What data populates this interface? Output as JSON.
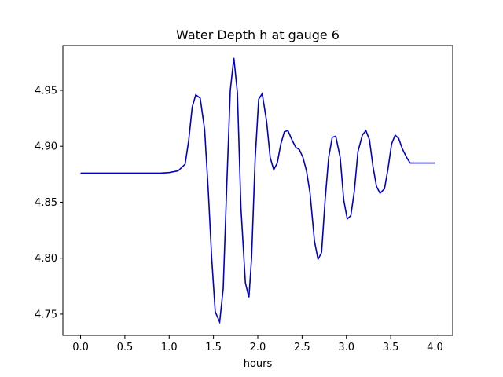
{
  "chart_data": {
    "type": "line",
    "title": "Water Depth h at gauge 6",
    "xlabel": "hours",
    "ylabel": "",
    "xlim": [
      -0.2,
      4.2
    ],
    "ylim": [
      4.731,
      4.99
    ],
    "xticks": [
      0.0,
      0.5,
      1.0,
      1.5,
      2.0,
      2.5,
      3.0,
      3.5,
      4.0
    ],
    "xtick_labels": [
      "0.0",
      "0.5",
      "1.0",
      "1.5",
      "2.0",
      "2.5",
      "3.0",
      "3.5",
      "4.0"
    ],
    "yticks": [
      4.75,
      4.8,
      4.85,
      4.9,
      4.95
    ],
    "ytick_labels": [
      "4.75",
      "4.80",
      "4.85",
      "4.90",
      "4.95"
    ],
    "grid": false,
    "line_color": "#0000cc",
    "series": [
      {
        "x": [
          0.0,
          0.5,
          0.9,
          1.0,
          1.1,
          1.18,
          1.22,
          1.26,
          1.3,
          1.35,
          1.4,
          1.44,
          1.48,
          1.52,
          1.57,
          1.61,
          1.65,
          1.69,
          1.73,
          1.77,
          1.81,
          1.86,
          1.9,
          1.93,
          1.97,
          2.01,
          2.05,
          2.1,
          2.14,
          2.18,
          2.22,
          2.26,
          2.3,
          2.34,
          2.39,
          2.43,
          2.47,
          2.51,
          2.55,
          2.59,
          2.64,
          2.68,
          2.72,
          2.76,
          2.8,
          2.84,
          2.88,
          2.93,
          2.97,
          3.01,
          3.05,
          3.09,
          3.13,
          3.18,
          3.22,
          3.26,
          3.3,
          3.34,
          3.38,
          3.43,
          3.47,
          3.51,
          3.55,
          3.59,
          3.63,
          3.68,
          3.72,
          3.76,
          3.8,
          3.84,
          3.88,
          3.93,
          3.97,
          4.0
        ],
        "y": [
          4.876,
          4.876,
          4.876,
          4.8765,
          4.878,
          4.884,
          4.905,
          4.935,
          4.946,
          4.943,
          4.915,
          4.862,
          4.8,
          4.752,
          4.743,
          4.773,
          4.865,
          4.95,
          4.979,
          4.948,
          4.845,
          4.778,
          4.765,
          4.8,
          4.888,
          4.942,
          4.947,
          4.922,
          4.89,
          4.879,
          4.885,
          4.902,
          4.913,
          4.914,
          4.905,
          4.899,
          4.897,
          4.89,
          4.878,
          4.858,
          4.815,
          4.799,
          4.805,
          4.852,
          4.89,
          4.908,
          4.909,
          4.89,
          4.852,
          4.835,
          4.838,
          4.86,
          4.895,
          4.91,
          4.914,
          4.906,
          4.882,
          4.864,
          4.858,
          4.862,
          4.88,
          4.902,
          4.91,
          4.907,
          4.898,
          4.89,
          4.885,
          4.885,
          4.885,
          4.885,
          4.885,
          4.885,
          4.885,
          4.885
        ]
      }
    ]
  }
}
